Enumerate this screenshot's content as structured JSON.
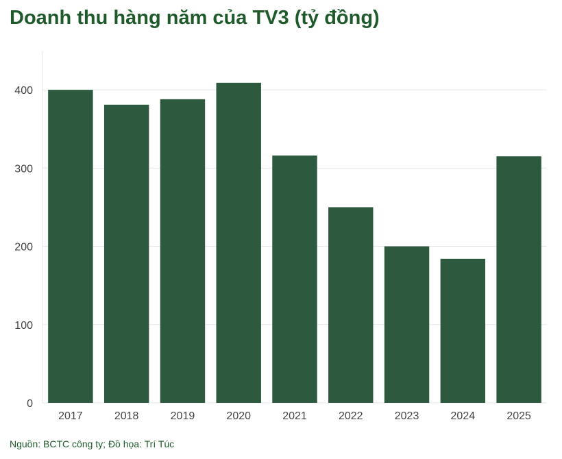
{
  "title": "Doanh thu hàng năm của TV3 (tỷ đồng)",
  "source": "Nguồn: BCTC công ty; Đồ họa: Trí Túc",
  "colors": {
    "bar": "#2d5a3f",
    "title": "#1f5a2b",
    "grid": "#e6e6e6",
    "axis_text": "#444444"
  },
  "chart_data": {
    "type": "bar",
    "title": "Doanh thu hàng năm của TV3 (tỷ đồng)",
    "categories": [
      "2017",
      "2018",
      "2019",
      "2020",
      "2021",
      "2022",
      "2023",
      "2024",
      "2025"
    ],
    "values": [
      400,
      381,
      388,
      409,
      316,
      250,
      200,
      184,
      315
    ],
    "yticks": [
      0,
      100,
      200,
      300,
      400
    ],
    "ylim": [
      0,
      450
    ],
    "grid": true,
    "legend": false
  }
}
